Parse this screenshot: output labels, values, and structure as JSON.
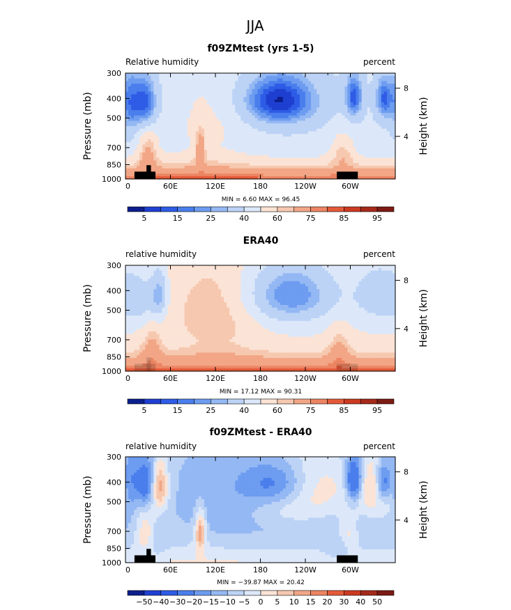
{
  "page_title": "JJA",
  "colors": {
    "rh": [
      "#0b1f8c",
      "#1f3fd1",
      "#2e5ce6",
      "#4a7eec",
      "#6d9cf0",
      "#94b8f3",
      "#bcd3f6",
      "#dce8f9",
      "#fbe3d6",
      "#f6c8af",
      "#f2a686",
      "#ec8462",
      "#e45a39",
      "#cc3a22",
      "#a52a1b",
      "#7c1b12"
    ],
    "diff": [
      "#0b1f8c",
      "#1f3fd1",
      "#2e5ce6",
      "#4a7eec",
      "#6d9cf0",
      "#94b8f3",
      "#bcd3f6",
      "#dce8f9",
      "#fbe3d6",
      "#f6c8af",
      "#f2a686",
      "#ec8462",
      "#e45a39",
      "#cc3a22",
      "#a52a1b",
      "#7c1b12"
    ],
    "topography": "#000000"
  },
  "chart_data": [
    {
      "type": "heatmap",
      "title": "f09ZMtest (yrs 1-5)",
      "left_label": "Relative humidity",
      "right_label": "percent",
      "ylabel": "Pressure (mb)",
      "ylabel_right": "Height (km)",
      "x_ticks": [
        "0",
        "60E",
        "120E",
        "180",
        "120W",
        "60W"
      ],
      "x_tick_values": [
        0,
        60,
        120,
        180,
        240,
        300
      ],
      "xlim": [
        0,
        360
      ],
      "y_ticks": [
        "300",
        "400",
        "500",
        "700",
        "850",
        "1000"
      ],
      "y_tick_values": [
        300,
        400,
        500,
        700,
        850,
        1000
      ],
      "ylim": [
        300,
        1000
      ],
      "right_ticks": [
        "8",
        "4"
      ],
      "right_tick_values": [
        356,
        616
      ],
      "min_max_text": "MIN =     6.60   MAX =   96.45",
      "colorbar_labels": [
        "5",
        "15",
        "25",
        "40",
        "60",
        "75",
        "85",
        "95"
      ],
      "colorbar_kind": "rh",
      "field": "model_rh"
    },
    {
      "type": "heatmap",
      "title": "ERA40",
      "left_label": "relative humidity",
      "right_label": "percent",
      "ylabel": "Pressure (mb)",
      "ylabel_right": "Height (km)",
      "x_ticks": [
        "0",
        "60E",
        "120E",
        "180",
        "120W",
        "60W"
      ],
      "x_tick_values": [
        0,
        60,
        120,
        180,
        240,
        300
      ],
      "xlim": [
        0,
        360
      ],
      "y_ticks": [
        "300",
        "400",
        "500",
        "700",
        "850",
        "1000"
      ],
      "y_tick_values": [
        300,
        400,
        500,
        700,
        850,
        1000
      ],
      "ylim": [
        300,
        1000
      ],
      "right_ticks": [
        "8",
        "4"
      ],
      "right_tick_values": [
        356,
        616
      ],
      "min_max_text": "MIN =   17.12   MAX =   90.31",
      "colorbar_labels": [
        "5",
        "15",
        "25",
        "40",
        "60",
        "75",
        "85",
        "95"
      ],
      "colorbar_kind": "rh",
      "field": "obs_rh"
    },
    {
      "type": "heatmap",
      "title": "f09ZMtest - ERA40",
      "left_label": "relative humidity",
      "right_label": "percent",
      "ylabel": "Pressure (mb)",
      "ylabel_right": "Height (km)",
      "x_ticks": [
        "0",
        "60E",
        "120E",
        "180",
        "120W",
        "60W"
      ],
      "x_tick_values": [
        0,
        60,
        120,
        180,
        240,
        300
      ],
      "xlim": [
        0,
        360
      ],
      "y_ticks": [
        "300",
        "400",
        "500",
        "700",
        "850",
        "1000"
      ],
      "y_tick_values": [
        300,
        400,
        500,
        700,
        850,
        1000
      ],
      "ylim": [
        300,
        1000
      ],
      "right_ticks": [
        "8",
        "4"
      ],
      "right_tick_values": [
        356,
        616
      ],
      "min_max_text": "MIN = −39.87   MAX =   20.42",
      "colorbar_labels": [
        "−50",
        "−40",
        "−30",
        "−20",
        "−15",
        "−10",
        "−5",
        "0",
        "5",
        "10",
        "15",
        "20",
        "30",
        "40",
        "50"
      ],
      "colorbar_kind": "diff",
      "field": "diff_rh"
    }
  ]
}
